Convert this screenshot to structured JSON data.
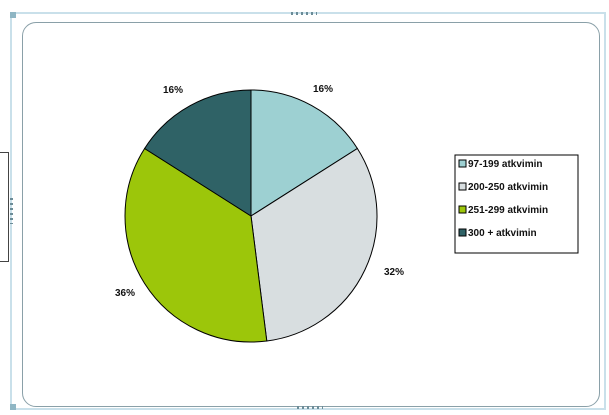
{
  "chart_data": {
    "type": "pie",
    "categories": [
      "97-199 atkvimin",
      "200-250 atkvimin",
      "251-299 atkvimin",
      "300 + atkvimin"
    ],
    "values": [
      16,
      32,
      36,
      16
    ],
    "data_labels": [
      "16%",
      "32%",
      "36%",
      "16%"
    ],
    "colors": [
      "#9dd0d2",
      "#d8dee0",
      "#9cc60a",
      "#2f6266"
    ],
    "legend_position": "right",
    "title": ""
  },
  "legend": {
    "items": [
      {
        "label": "97-199 atkvimin",
        "color": "#9dd0d2"
      },
      {
        "label": "200-250 atkvimin",
        "color": "#d8dee0"
      },
      {
        "label": "251-299 atkvimin",
        "color": "#9cc60a"
      },
      {
        "label": "300 + atkvimin",
        "color": "#2f6266"
      }
    ]
  }
}
